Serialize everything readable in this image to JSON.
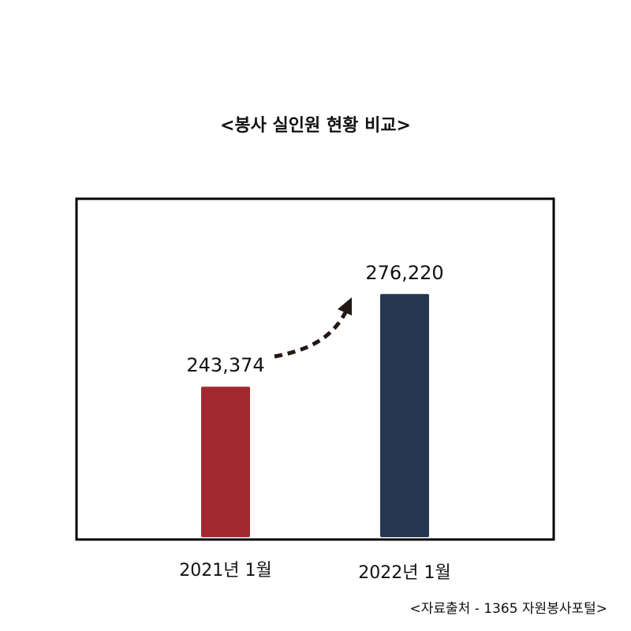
{
  "chart_data": {
    "type": "bar",
    "title": "<봉사 실인원 현황 비교>",
    "categories": [
      "2021년 1월",
      "2022년 1월"
    ],
    "values": [
      243374,
      276220
    ],
    "value_labels": [
      "243,374",
      "276,220"
    ],
    "colors": [
      "#a0282e",
      "#263750"
    ],
    "ylim": [
      190000,
      310000
    ],
    "source": "<자료출처 - 1365 자원봉사포털>"
  }
}
